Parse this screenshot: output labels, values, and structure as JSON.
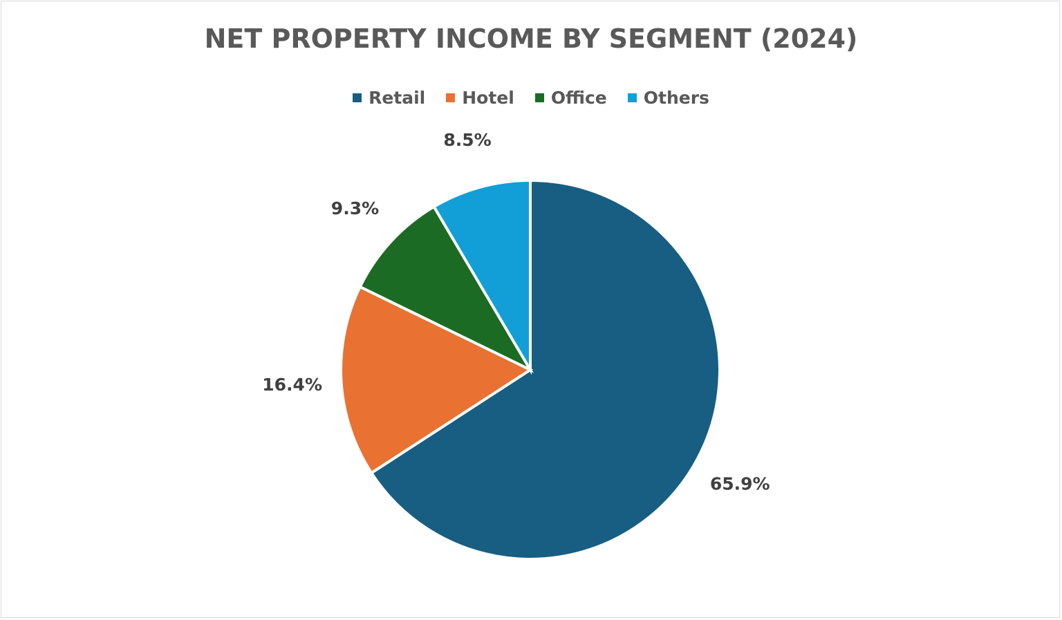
{
  "chart_data": {
    "type": "pie",
    "title": "NET PROPERTY INCOME BY SEGMENT (2024)",
    "legend_position": "top",
    "start_angle": "12 o'clock, clockwise",
    "categories": [
      "Retail",
      "Hotel",
      "Office",
      "Others"
    ],
    "values": [
      65.9,
      16.4,
      9.3,
      8.5
    ],
    "data_labels": [
      "65.9%",
      "16.4%",
      "9.3%",
      "8.5%"
    ],
    "colors": [
      "#175E82",
      "#E97132",
      "#1C6B24",
      "#129FD7"
    ]
  }
}
